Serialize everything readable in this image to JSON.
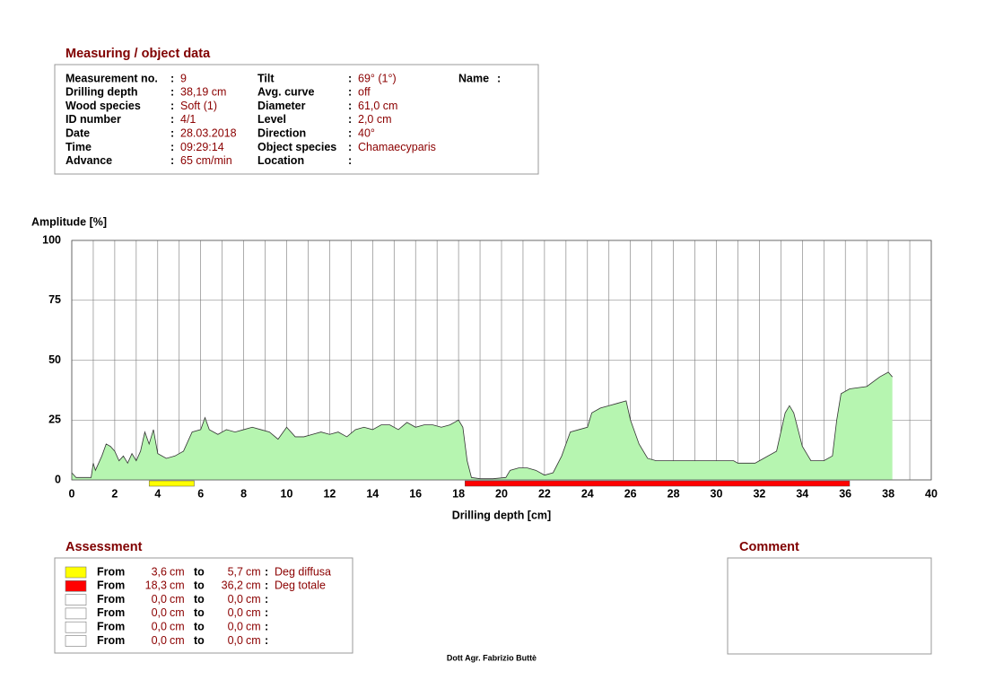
{
  "header": {
    "title": "Measuring / object data"
  },
  "separator": ":",
  "measurement": {
    "columns": [
      [
        {
          "label": "Measurement no.",
          "value": "9"
        },
        {
          "label": "Drilling depth",
          "value": "38,19 cm"
        },
        {
          "label": "Wood species",
          "value": "Soft (1)"
        },
        {
          "label": "ID number",
          "value": "4/1"
        },
        {
          "label": "Date",
          "value": "28.03.2018"
        },
        {
          "label": "Time",
          "value": "09:29:14"
        },
        {
          "label": "Advance",
          "value": "65 cm/min"
        }
      ],
      [
        {
          "label": "Tilt",
          "value": "69° (1°)"
        },
        {
          "label": "Avg. curve",
          "value": "off"
        },
        {
          "label": "Diameter",
          "value": "61,0 cm"
        },
        {
          "label": "Level",
          "value": "2,0 cm"
        },
        {
          "label": "Direction",
          "value": "40°"
        },
        {
          "label": "Object species",
          "value": "Chamaecyparis"
        },
        {
          "label": "Location",
          "value": ""
        }
      ],
      [
        {
          "label": "Name",
          "value": ""
        }
      ]
    ]
  },
  "chart_data": {
    "type": "area",
    "y_label": "Amplitude [%]",
    "x_label": "Drilling depth [cm]",
    "color": "#b6f5b0",
    "line_color": "#333333",
    "grid": true,
    "xlim": [
      0,
      40
    ],
    "ylim": [
      0,
      100
    ],
    "xticks": [
      0,
      2,
      4,
      6,
      8,
      10,
      12,
      14,
      16,
      18,
      20,
      22,
      24,
      26,
      28,
      30,
      32,
      34,
      36,
      38,
      40
    ],
    "xminorticks": [
      1,
      3,
      5,
      7,
      9,
      11,
      13,
      15,
      17,
      19,
      21,
      23,
      25,
      27,
      29,
      31,
      33,
      35,
      37,
      39
    ],
    "yticks": [
      0,
      25,
      50,
      75,
      100
    ],
    "x": [
      0,
      0.2,
      0.5,
      0.9,
      1.0,
      1.1,
      1.4,
      1.6,
      1.8,
      2.0,
      2.2,
      2.4,
      2.6,
      2.8,
      3.0,
      3.2,
      3.4,
      3.6,
      3.8,
      4.0,
      4.4,
      4.8,
      5.2,
      5.6,
      6.0,
      6.2,
      6.4,
      6.8,
      7.2,
      7.6,
      8.0,
      8.4,
      8.8,
      9.2,
      9.6,
      10.0,
      10.4,
      10.8,
      11.2,
      11.6,
      12.0,
      12.4,
      12.8,
      13.2,
      13.6,
      14.0,
      14.4,
      14.8,
      15.2,
      15.6,
      16.0,
      16.4,
      16.8,
      17.2,
      17.6,
      18.0,
      18.2,
      18.4,
      18.6,
      19.0,
      19.6,
      20.2,
      20.4,
      20.8,
      21.2,
      21.6,
      22.0,
      22.4,
      22.8,
      23.2,
      23.6,
      24.0,
      24.2,
      24.6,
      25.0,
      25.4,
      25.8,
      26.0,
      26.4,
      26.8,
      27.2,
      28.0,
      29.0,
      30.0,
      30.8,
      31.0,
      31.8,
      32.2,
      32.8,
      33.2,
      33.4,
      33.6,
      34.0,
      34.4,
      35.0,
      35.4,
      35.6,
      35.8,
      36.2,
      37.0,
      37.6,
      38.0,
      38.19
    ],
    "values": [
      3,
      1,
      1,
      1,
      7,
      4,
      10,
      15,
      14,
      12,
      8,
      10,
      7,
      11,
      8,
      12,
      20,
      15,
      21,
      11,
      9,
      10,
      12,
      20,
      21,
      26,
      21,
      19,
      21,
      20,
      21,
      22,
      21,
      20,
      17,
      22,
      18,
      18,
      19,
      20,
      19,
      20,
      18,
      21,
      22,
      21,
      23,
      23,
      21,
      24,
      22,
      23,
      23,
      22,
      23,
      25,
      22,
      8,
      1,
      0.5,
      0.5,
      1,
      4,
      5,
      5,
      4,
      2,
      3,
      10,
      20,
      21,
      22,
      28,
      30,
      31,
      32,
      33,
      25,
      15,
      9,
      8,
      8,
      8,
      8,
      8,
      7,
      7,
      9,
      12,
      28,
      31,
      28,
      14,
      8,
      8,
      10,
      25,
      36,
      38,
      39,
      43,
      45,
      43
    ]
  },
  "assessment": {
    "title": "Assessment",
    "from_label": "From",
    "to_label": "to",
    "unit": "cm",
    "rows": [
      {
        "color": "#ffff00",
        "from": {
          "value": 3.6,
          "label": "3,6"
        },
        "to": {
          "value": 5.7,
          "label": "5,7"
        },
        "text": "Deg diffusa"
      },
      {
        "color": "#ff0000",
        "from": {
          "value": 18.3,
          "label": "18,3"
        },
        "to": {
          "value": 36.2,
          "label": "36,2"
        },
        "text": "Deg totale"
      },
      {
        "color": "#ffffff",
        "from": {
          "value": 0,
          "label": "0,0"
        },
        "to": {
          "value": 0,
          "label": "0,0"
        },
        "text": ""
      },
      {
        "color": "#ffffff",
        "from": {
          "value": 0,
          "label": "0,0"
        },
        "to": {
          "value": 0,
          "label": "0,0"
        },
        "text": ""
      },
      {
        "color": "#ffffff",
        "from": {
          "value": 0,
          "label": "0,0"
        },
        "to": {
          "value": 0,
          "label": "0,0"
        },
        "text": ""
      },
      {
        "color": "#ffffff",
        "from": {
          "value": 0,
          "label": "0,0"
        },
        "to": {
          "value": 0,
          "label": "0,0"
        },
        "text": ""
      }
    ]
  },
  "comment": {
    "title": "Comment"
  },
  "footer": {
    "text": "Dott Agr. Fabrizio Buttè"
  }
}
